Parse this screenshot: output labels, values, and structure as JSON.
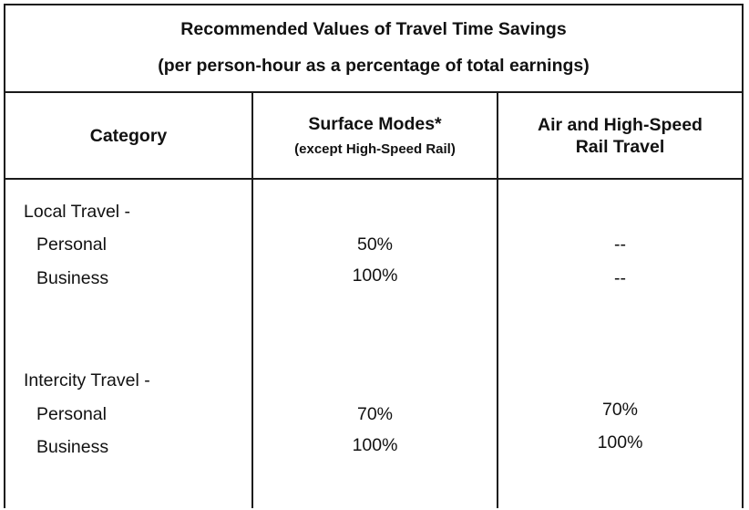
{
  "title": {
    "line1": "Recommended Values of Travel Time Savings",
    "line2": "(per person-hour as a percentage of total earnings)"
  },
  "columns": {
    "category": "Category",
    "surface": "Surface Modes*",
    "surface_note": "(except High-Speed Rail)",
    "air_line1": "Air and High-Speed",
    "air_line2": "Rail Travel"
  },
  "groups": [
    {
      "label": "Local Travel -",
      "rows": [
        {
          "label": "Personal",
          "surface": "50%",
          "air": "--"
        },
        {
          "label": "Business",
          "surface": "100%",
          "air": "--"
        }
      ]
    },
    {
      "label": "Intercity Travel -",
      "rows": [
        {
          "label": "Personal",
          "surface": "70%",
          "air": "70%"
        },
        {
          "label": "Business",
          "surface": "100%",
          "air": "100%"
        }
      ]
    }
  ]
}
